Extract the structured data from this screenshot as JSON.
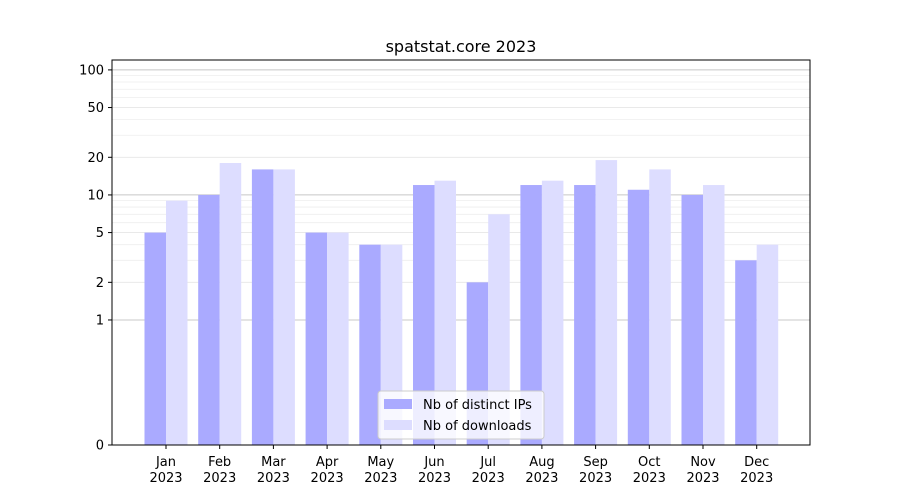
{
  "chart_data": {
    "type": "bar",
    "title": "spatstat.core 2023",
    "xlabel": "",
    "ylabel": "",
    "y_scale": "symlog",
    "ylim": [
      0,
      120
    ],
    "y_ticks": [
      0,
      1,
      2,
      5,
      10,
      20,
      50,
      100
    ],
    "y_tick_labels": [
      "0",
      "1",
      "2",
      "5",
      "10",
      "20",
      "50",
      "100"
    ],
    "categories": [
      "Jan\n2023",
      "Feb\n2023",
      "Mar\n2023",
      "Apr\n2023",
      "May\n2023",
      "Jun\n2023",
      "Jul\n2023",
      "Aug\n2023",
      "Sep\n2023",
      "Oct\n2023",
      "Nov\n2023",
      "Dec\n2023"
    ],
    "series": [
      {
        "name": "Nb of distinct IPs",
        "color": "#aaaaff",
        "values": [
          5,
          10,
          16,
          5,
          4,
          12,
          2,
          12,
          12,
          11,
          10,
          3
        ]
      },
      {
        "name": "Nb of downloads",
        "color": "#ddddff",
        "values": [
          9,
          18,
          16,
          5,
          4,
          13,
          7,
          13,
          19,
          16,
          12,
          4
        ]
      }
    ],
    "legend_position": "lower center",
    "grid": true
  }
}
